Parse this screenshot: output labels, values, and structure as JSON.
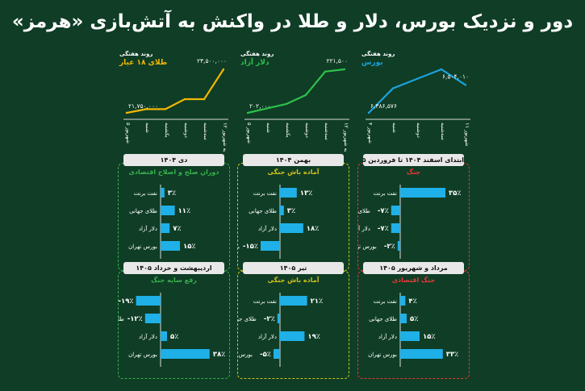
{
  "title": "دور و نزدیک بورس، دلار و طلا در واکنش به آتش‌بازی «هرمز»",
  "colors": {
    "gold": "#f2b705",
    "dollar": "#2ec14a",
    "bourse": "#1aa3dc",
    "bar": "#1fb0e8",
    "red": "#e53935",
    "green": "#37b24d",
    "yellow": "#d4c21a"
  },
  "line_charts": [
    {
      "id": "gold",
      "subtitle": "روند هفتگی",
      "name": "طلای ۱۸ عیار",
      "color_key": "gold",
      "categories": [
        "۵ شهریور",
        "شنبه",
        "یکشنبه",
        "دوشنبه",
        "سه‌شنبه",
        "۱۲ چهارشنبه شهریور"
      ],
      "values": [
        21750000,
        21900000,
        21900000,
        22300000,
        22300000,
        23500000
      ],
      "start_label": "۲۱,۷۵۰,۰۰۰",
      "end_label": "۲۳,۵۰۰,۰۰۰"
    },
    {
      "id": "dollar",
      "subtitle": "روند هفتگی",
      "name": "دلار آزاد",
      "color_key": "dollar",
      "categories": [
        "۵ شهریور",
        "شنبه",
        "یکشنبه",
        "دوشنبه",
        "سه‌شنبه",
        "۱۲ چهارشنبه شهریور"
      ],
      "values": [
        202000,
        204000,
        206000,
        210000,
        220500,
        221500
      ],
      "start_label": "۲۰۲,۰۰۰",
      "end_label": "۲۲۱,۵۰۰"
    },
    {
      "id": "bourse",
      "subtitle": "روند هفتگی",
      "name": "بورس",
      "color_key": "bourse",
      "categories": [
        "۴ شهریور",
        "شنبه",
        "دوشنبه",
        "سه‌شنبه",
        "۱۱ شهریور"
      ],
      "values": [
        6386576,
        6490000,
        6530000,
        6570000,
        6504010
      ],
      "start_label": "۶,۳۸۶,۵۷۶",
      "end_label": "۶,۵۰۴,۰۱۰"
    }
  ],
  "panels": [
    {
      "id": "p1",
      "header": "ابتدای اسفند ۱۴۰۴ تا فروردین ۱۴۰۵",
      "sub": "جنگ",
      "border": "red",
      "items": [
        {
          "label": "نفت برنت",
          "value": 35,
          "text": "۳۵٪"
        },
        {
          "label": "طلای جهانی",
          "value": -7,
          "text": "-۷٪"
        },
        {
          "label": "دلار آزاد",
          "value": -7,
          "text": "-۷٪"
        },
        {
          "label": "بورس تهران",
          "value": -2,
          "text": "-۲٪"
        }
      ]
    },
    {
      "id": "p2",
      "header": "بهمن ۱۴۰۴",
      "sub": "آماده باش جنگی",
      "border": "yellow",
      "items": [
        {
          "label": "نفت برنت",
          "value": 13,
          "text": "۱۳٪"
        },
        {
          "label": "طلای جهانی",
          "value": 3,
          "text": "۳٪"
        },
        {
          "label": "دلار آزاد",
          "value": 18,
          "text": "۱۸٪"
        },
        {
          "label": "بورس تهران",
          "value": -15,
          "text": "-۱۵٪"
        }
      ]
    },
    {
      "id": "p3",
      "header": "دی ۱۴۰۴",
      "sub": "دوران صلح و اصلاح اقتصادی",
      "border": "green",
      "items": [
        {
          "label": "نفت برنت",
          "value": 3,
          "text": "۳٪"
        },
        {
          "label": "طلای جهانی",
          "value": 11,
          "text": "۱۱٪"
        },
        {
          "label": "دلار آزاد",
          "value": 7,
          "text": "۷٪"
        },
        {
          "label": "بورس تهران",
          "value": 15,
          "text": "۱۵٪"
        }
      ]
    },
    {
      "id": "p4",
      "header": "مرداد و شهریور ۱۴۰۵",
      "sub": "جنگ اقتصادی",
      "border": "red",
      "items": [
        {
          "label": "نفت برنت",
          "value": 4,
          "text": "۴٪"
        },
        {
          "label": "طلای جهانی",
          "value": 5,
          "text": "۵٪"
        },
        {
          "label": "دلار آزاد",
          "value": 15,
          "text": "۱۵٪"
        },
        {
          "label": "بورس تهران",
          "value": 33,
          "text": "۳۳٪"
        }
      ]
    },
    {
      "id": "p5",
      "header": "تیر ۱۴۰۵",
      "sub": "آماده باش جنگی",
      "border": "yellow",
      "items": [
        {
          "label": "نفت برنت",
          "value": 21,
          "text": "۲۱٪"
        },
        {
          "label": "طلای جهانی",
          "value": -2,
          "text": "-۲٪"
        },
        {
          "label": "دلار آزاد",
          "value": 19,
          "text": "۱۹٪"
        },
        {
          "label": "بورس تهران",
          "value": -5,
          "text": "-۵٪"
        }
      ]
    },
    {
      "id": "p6",
      "header": "اردیبهشت و خرداد ۱۴۰۵",
      "sub": "رفع سایه جنگ",
      "border": "green",
      "items": [
        {
          "label": "نفت برنت",
          "value": -19,
          "text": "-۱۹٪"
        },
        {
          "label": "طلای جهانی",
          "value": -12,
          "text": "-۱۲٪"
        },
        {
          "label": "دلار آزاد",
          "value": 5,
          "text": "۵٪"
        },
        {
          "label": "بورس تهران",
          "value": 38,
          "text": "۳۸٪"
        }
      ]
    }
  ],
  "chart_data": [
    {
      "type": "line",
      "title": "طلای ۱۸ عیار",
      "x": [
        "۵ شهریور",
        "شنبه",
        "یکشنبه",
        "دوشنبه",
        "سه‌شنبه",
        "۱۲ چهارشنبه شهریور"
      ],
      "series": [
        {
          "values": [
            21750000,
            21900000,
            21900000,
            22300000,
            22300000,
            23500000
          ]
        }
      ]
    },
    {
      "type": "line",
      "title": "دلار آزاد",
      "x": [
        "۵ شهریور",
        "شنبه",
        "یکشنبه",
        "دوشنبه",
        "سه‌شنبه",
        "۱۲ چهارشنبه شهریور"
      ],
      "series": [
        {
          "values": [
            202000,
            204000,
            206000,
            210000,
            220500,
            221500
          ]
        }
      ]
    },
    {
      "type": "line",
      "title": "بورس",
      "x": [
        "۴ شهریور",
        "شنبه",
        "دوشنبه",
        "سه‌شنبه",
        "۱۱ شهریور"
      ],
      "series": [
        {
          "values": [
            6386576,
            6490000,
            6530000,
            6570000,
            6504010
          ]
        }
      ]
    },
    {
      "type": "bar",
      "title": "ابتدای اسفند ۱۴۰۴ تا فروردین ۱۴۰۵",
      "categories": [
        "نفت برنت",
        "طلای جهانی",
        "دلار آزاد",
        "بورس تهران"
      ],
      "values": [
        35,
        -7,
        -7,
        -2
      ]
    },
    {
      "type": "bar",
      "title": "بهمن ۱۴۰۴",
      "categories": [
        "نفت برنت",
        "طلای جهانی",
        "دلار آزاد",
        "بورس تهران"
      ],
      "values": [
        13,
        3,
        18,
        -15
      ]
    },
    {
      "type": "bar",
      "title": "دی ۱۴۰۴",
      "categories": [
        "نفت برنت",
        "طلای جهانی",
        "دلار آزاد",
        "بورس تهران"
      ],
      "values": [
        3,
        11,
        7,
        15
      ]
    },
    {
      "type": "bar",
      "title": "مرداد و شهریور ۱۴۰۵",
      "categories": [
        "نفت برنت",
        "طلای جهانی",
        "دلار آزاد",
        "بورس تهران"
      ],
      "values": [
        4,
        5,
        15,
        33
      ]
    },
    {
      "type": "bar",
      "title": "تیر ۱۴۰۵",
      "categories": [
        "نفت برنت",
        "طلای جهانی",
        "دلار آزاد",
        "بورس تهران"
      ],
      "values": [
        21,
        -2,
        19,
        -5
      ]
    },
    {
      "type": "bar",
      "title": "اردیبهشت و خرداد ۱۴۰۵",
      "categories": [
        "نفت برنت",
        "طلای جهانی",
        "دلار آزاد",
        "بورس تهران"
      ],
      "values": [
        -19,
        -12,
        5,
        38
      ]
    }
  ]
}
